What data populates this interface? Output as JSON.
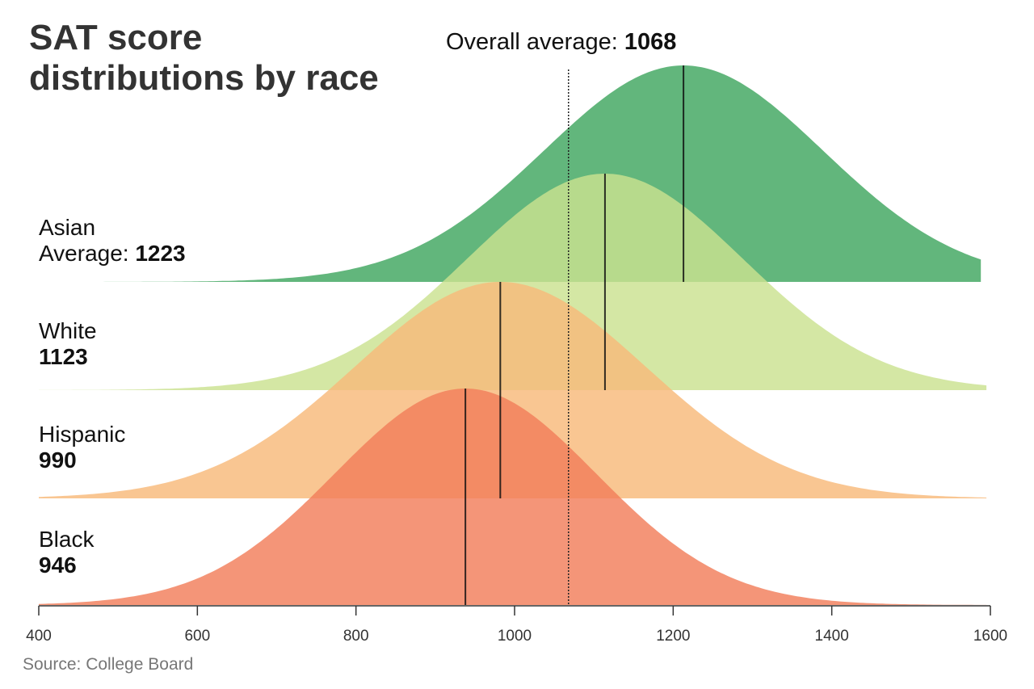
{
  "title_lines": [
    "SAT score",
    "distributions by race"
  ],
  "source": "Source: College Board",
  "chart_data": {
    "type": "area",
    "x_axis": {
      "min": 400,
      "max": 1600,
      "ticks": [
        400,
        600,
        800,
        1000,
        1200,
        1400,
        1600
      ]
    },
    "overall_average": {
      "label": "Overall average: ",
      "value": 1068
    },
    "series": [
      {
        "name": "Asian",
        "prefix": "Average: ",
        "average": 1223,
        "mean": 1213,
        "sd": 176,
        "x_end": 1588,
        "color": "#62b67c",
        "opacity": 1.0
      },
      {
        "name": "White",
        "prefix": "",
        "average": 1123,
        "mean": 1114,
        "sd": 174,
        "x_end": 1595,
        "color": "#cbe290",
        "opacity": 0.82
      },
      {
        "name": "Hispanic",
        "prefix": "",
        "average": 990,
        "mean": 982,
        "sd": 184,
        "x_end": 1595,
        "color": "#f8b97a",
        "opacity": 0.82
      },
      {
        "name": "Black",
        "prefix": "",
        "average": 946,
        "mean": 938,
        "sd": 165,
        "x_end": 1595,
        "color": "#f17e5a",
        "opacity": 0.82
      }
    ]
  }
}
